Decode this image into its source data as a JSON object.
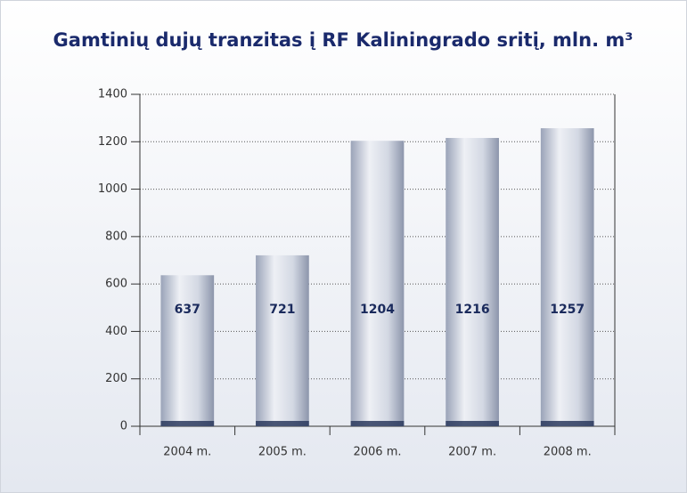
{
  "chart_data": {
    "type": "bar",
    "title": "Gamtinių dujų tranzitas į RF Kaliningrado sritį, mln. m³",
    "categories": [
      "2004 m.",
      "2005 m.",
      "2006 m.",
      "2007 m.",
      "2008 m."
    ],
    "values": [
      637,
      721,
      1204,
      1216,
      1257
    ],
    "color": "#c9cfdb",
    "ylim": [
      0,
      1400
    ],
    "yticks": [
      0,
      200,
      400,
      600,
      800,
      1000,
      1200,
      1400
    ],
    "grid": true
  }
}
